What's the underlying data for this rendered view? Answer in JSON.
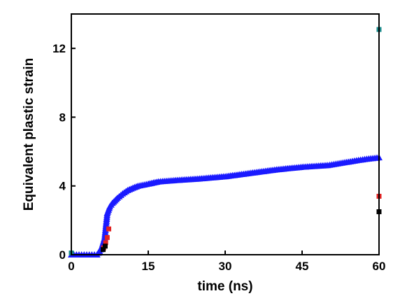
{
  "chart_data": {
    "type": "scatter",
    "title": "",
    "xlabel": "time (ns)",
    "ylabel": "Equivalent plastic strain",
    "xlim": [
      0,
      60
    ],
    "ylim": [
      0,
      14
    ],
    "xticks": [
      0,
      15,
      30,
      45,
      60
    ],
    "yticks": [
      0,
      4,
      8,
      12
    ],
    "grid": false,
    "legend": "none",
    "series": [
      {
        "color": "#1a1aff",
        "marker": "triangle",
        "x": [
          0,
          1,
          2,
          3,
          4,
          5,
          5.5,
          6,
          6.5,
          7,
          7.5,
          8,
          9,
          10,
          11,
          12,
          13,
          15,
          17,
          20,
          25,
          30,
          35,
          40,
          45,
          50,
          52,
          54,
          56,
          58,
          60
        ],
        "y": [
          0,
          0,
          0,
          0,
          0,
          0,
          0.2,
          0.5,
          1.0,
          2.4,
          2.8,
          3.0,
          3.3,
          3.55,
          3.75,
          3.88,
          4.0,
          4.12,
          4.25,
          4.32,
          4.42,
          4.55,
          4.75,
          4.95,
          5.1,
          5.2,
          5.3,
          5.4,
          5.5,
          5.58,
          5.65
        ]
      },
      {
        "color": "#e02020",
        "marker": "square",
        "x": [
          6.3,
          6.7,
          7,
          7.3,
          60
        ],
        "y": [
          0.4,
          0.7,
          1.0,
          1.5,
          3.4
        ]
      },
      {
        "color": "#000000",
        "marker": "square",
        "x": [
          6.2,
          6.6,
          60
        ],
        "y": [
          0.3,
          0.5,
          2.5
        ]
      },
      {
        "color": "#1a8a8a",
        "marker": "square",
        "x": [
          0,
          60
        ],
        "y": [
          0.1,
          13.1
        ]
      }
    ]
  }
}
